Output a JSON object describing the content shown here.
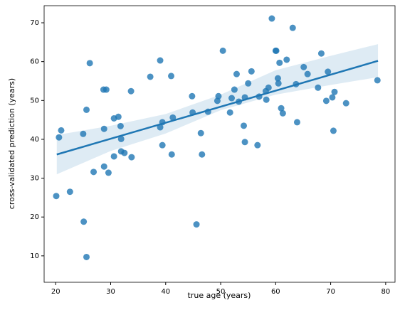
{
  "chart_data": {
    "type": "scatter",
    "xlabel": "true age (years)",
    "ylabel": "cross-validated prediction (years)",
    "color": "#1f77b4",
    "x": [
      20.1,
      20.6,
      21,
      22.6,
      25,
      25.1,
      25.6,
      25.6,
      26.2,
      26.9,
      28.7,
      28.8,
      28.8,
      29.2,
      29.6,
      30.6,
      30.6,
      31.4,
      31.8,
      31.9,
      31.9,
      32.5,
      33.7,
      33.8,
      37.2,
      39,
      39,
      39.4,
      39.4,
      41,
      41.1,
      41.3,
      44.8,
      44.9,
      45.6,
      46.4,
      46.6,
      47.7,
      49.4,
      49.6,
      50.4,
      51.7,
      52,
      52.5,
      52.9,
      53.3,
      54.2,
      54.4,
      54.4,
      55,
      55.6,
      56.7,
      57,
      58.2,
      58.3,
      58.7,
      59.3,
      60,
      60.1,
      60.4,
      60.5,
      60.7,
      61,
      61.3,
      62,
      63.1,
      63.7,
      63.9,
      65.1,
      65.8,
      67.7,
      68.3,
      69.2,
      69.5,
      70.3,
      70.5,
      70.7,
      72.8,
      78.5
    ],
    "values": [
      25.4,
      40.5,
      42.3,
      26.5,
      41.4,
      18.8,
      47.6,
      9.7,
      59.6,
      31.6,
      52.8,
      42.7,
      33,
      52.8,
      31.4,
      45.4,
      35.6,
      45.8,
      43.4,
      40.1,
      36.9,
      36.5,
      52.4,
      35.4,
      56.1,
      43.1,
      60.3,
      44.4,
      38.5,
      56.3,
      36.1,
      45.6,
      51.1,
      46.9,
      18.1,
      41.6,
      36.1,
      47.1,
      49.9,
      51.1,
      62.8,
      46.9,
      50.6,
      52.8,
      56.8,
      49.7,
      43.5,
      50.8,
      39.3,
      54.4,
      57.5,
      38.5,
      51,
      52.4,
      50.2,
      53.3,
      71.1,
      62.8,
      62.8,
      55.7,
      54.4,
      59.7,
      48,
      46.7,
      60.5,
      68.7,
      54.2,
      44.4,
      58.6,
      56.8,
      53.3,
      62.1,
      49.9,
      57.4,
      50.8,
      42.2,
      52.2,
      49.3,
      55.2
    ],
    "fit": {
      "x": [
        20.2,
        78.6
      ],
      "values": [
        36.1,
        60.2
      ]
    },
    "ci": {
      "x": [
        20.2,
        30,
        40,
        50,
        60,
        70,
        78.6
      ],
      "lower": [
        31,
        37,
        41.5,
        47.5,
        51.5,
        54,
        56
      ],
      "upper": [
        41.1,
        43.5,
        46.5,
        51.5,
        57.8,
        61.5,
        64.5
      ]
    },
    "xlim": [
      17.9,
      81.7
    ],
    "xticks": [
      20,
      30,
      40,
      50,
      60,
      70,
      80
    ],
    "ylim": [
      3.2,
      74.4
    ],
    "yticks": [
      10,
      20,
      30,
      40,
      50,
      60,
      70
    ]
  }
}
